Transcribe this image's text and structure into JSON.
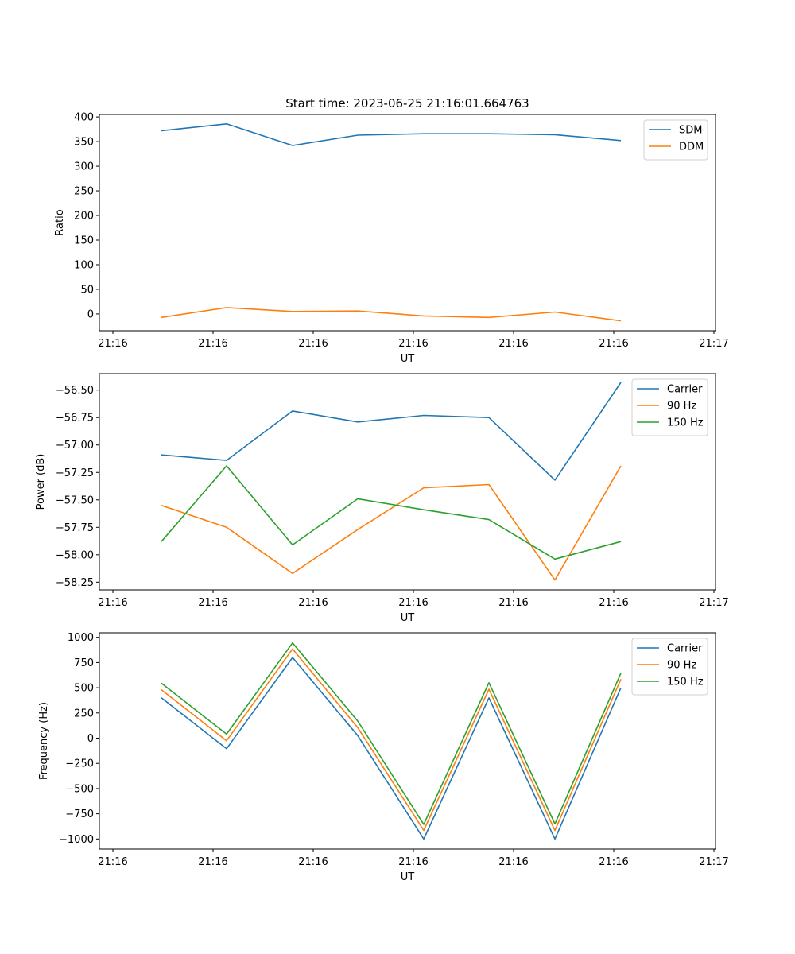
{
  "chart_data": [
    {
      "type": "line",
      "title": "Start time: 2023-06-25 21:16:01.664763",
      "xlabel": "UT",
      "ylabel": "Ratio",
      "x_tick_labels": [
        "21:16",
        "21:16",
        "21:16",
        "21:16",
        "21:16",
        "21:16",
        "21:17"
      ],
      "y_ticks": [
        0,
        50,
        100,
        150,
        200,
        250,
        300,
        350,
        400
      ],
      "ylim": [
        -34,
        405
      ],
      "legend_position": "upper right",
      "series": [
        {
          "name": "SDM",
          "color": "#1f77b4",
          "values": [
            372,
            386,
            342,
            363,
            366,
            366,
            364,
            352
          ]
        },
        {
          "name": "DDM",
          "color": "#ff7f0e",
          "values": [
            -7,
            13,
            5,
            6,
            -4,
            -7,
            4,
            -14
          ]
        }
      ]
    },
    {
      "type": "line",
      "title": "",
      "xlabel": "UT",
      "ylabel": "Power (dB)",
      "x_tick_labels": [
        "21:16",
        "21:16",
        "21:16",
        "21:16",
        "21:16",
        "21:16",
        "21:17"
      ],
      "y_ticks": [
        -58.25,
        -58.0,
        -57.75,
        -57.5,
        -57.25,
        -57.0,
        -56.75,
        -56.5
      ],
      "y_tick_labels": [
        "−58.25",
        "−58.00",
        "−57.75",
        "−57.50",
        "−57.25",
        "−57.00",
        "−56.75",
        "−56.50"
      ],
      "ylim": [
        -58.32,
        -56.35
      ],
      "legend_position": "upper right",
      "series": [
        {
          "name": "Carrier",
          "color": "#1f77b4",
          "values": [
            -57.09,
            -57.14,
            -56.69,
            -56.79,
            -56.73,
            -56.75,
            -57.32,
            -56.43
          ]
        },
        {
          "name": "90 Hz",
          "color": "#ff7f0e",
          "values": [
            -57.55,
            -57.75,
            -58.17,
            -57.77,
            -57.39,
            -57.36,
            -58.23,
            -57.19
          ]
        },
        {
          "name": "150 Hz",
          "color": "#2ca02c",
          "values": [
            -57.88,
            -57.19,
            -57.91,
            -57.49,
            -57.59,
            -57.68,
            -58.04,
            -57.88
          ]
        }
      ]
    },
    {
      "type": "line",
      "title": "",
      "xlabel": "UT",
      "ylabel": "Frequency (Hz)",
      "x_tick_labels": [
        "21:16",
        "21:16",
        "21:16",
        "21:16",
        "21:16",
        "21:16",
        "21:17"
      ],
      "y_ticks": [
        -1000,
        -750,
        -500,
        -250,
        0,
        250,
        500,
        750,
        1000
      ],
      "y_tick_labels": [
        "−1000",
        "−750",
        "−500",
        "−250",
        "0",
        "250",
        "500",
        "750",
        "1000"
      ],
      "ylim": [
        -1100,
        1045
      ],
      "legend_position": "upper right",
      "series": [
        {
          "name": "Carrier",
          "color": "#1f77b4",
          "values": [
            400,
            -105,
            800,
            25,
            -1000,
            400,
            -1000,
            500
          ]
        },
        {
          "name": "90 Hz",
          "color": "#ff7f0e",
          "values": [
            480,
            -25,
            885,
            105,
            -915,
            485,
            -915,
            585
          ]
        },
        {
          "name": "150 Hz",
          "color": "#2ca02c",
          "values": [
            545,
            40,
            945,
            170,
            -855,
            550,
            -850,
            645
          ]
        }
      ]
    }
  ]
}
